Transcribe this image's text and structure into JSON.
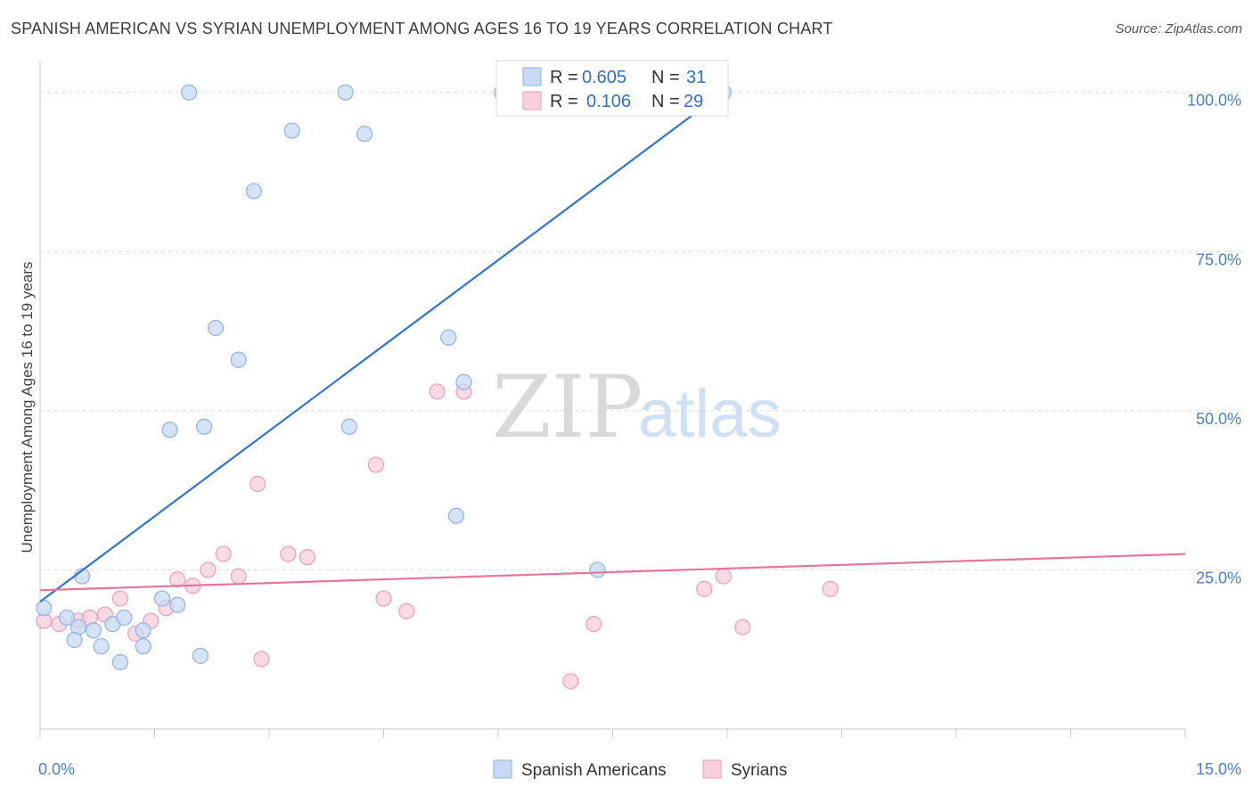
{
  "title": "SPANISH AMERICAN VS SYRIAN UNEMPLOYMENT AMONG AGES 16 TO 19 YEARS CORRELATION CHART",
  "source": "Source: ZipAtlas.com",
  "watermark": {
    "zip": "ZIP",
    "atlas": "atlas"
  },
  "colors": {
    "blue_fill": "#c7d9f3",
    "blue_stroke": "#8fb2e3",
    "blue_line": "#2f74d0",
    "pink_fill": "#f8cfdc",
    "pink_stroke": "#ee9db7",
    "pink_line": "#e8749b",
    "grid": "#d9d9d9",
    "axis_text": "#4a7fc9"
  },
  "legend": {
    "rows": [
      {
        "r_label": "R =",
        "r_value": "0.605",
        "n_label": "N =",
        "n_value": "31"
      },
      {
        "r_label": "R =",
        "r_value": "0.106",
        "n_label": "N =",
        "n_value": "29"
      }
    ]
  },
  "bottom_legend": [
    "Spanish Americans",
    "Syrians"
  ],
  "chart_data": {
    "type": "scatter",
    "title": "SPANISH AMERICAN VS SYRIAN UNEMPLOYMENT AMONG AGES 16 TO 19 YEARS CORRELATION CHART",
    "xlabel": "",
    "ylabel": "Unemployment Among Ages 16 to 19 years",
    "xlim": [
      0,
      15
    ],
    "ylim": [
      0,
      105
    ],
    "x_tick_labels": [
      "0.0%",
      "15.0%"
    ],
    "y_ticks": [
      25,
      50,
      75,
      100
    ],
    "y_tick_labels": [
      "25.0%",
      "50.0%",
      "75.0%",
      "100.0%"
    ],
    "grid": true,
    "legend_position": "top-center",
    "series": [
      {
        "name": "Spanish Americans",
        "points": [
          [
            0.05,
            19
          ],
          [
            0.55,
            24
          ],
          [
            0.5,
            16
          ],
          [
            0.35,
            17.5
          ],
          [
            0.45,
            14
          ],
          [
            0.7,
            15.5
          ],
          [
            0.8,
            13
          ],
          [
            0.95,
            16.5
          ],
          [
            1.1,
            17.5
          ],
          [
            1.05,
            10.5
          ],
          [
            1.35,
            13
          ],
          [
            1.35,
            15.5
          ],
          [
            1.6,
            20.5
          ],
          [
            1.8,
            19.5
          ],
          [
            2.1,
            11.5
          ],
          [
            1.7,
            47
          ],
          [
            2.15,
            47.5
          ],
          [
            2.3,
            63
          ],
          [
            2.6,
            58
          ],
          [
            2.8,
            84.5
          ],
          [
            3.3,
            94
          ],
          [
            1.95,
            100
          ],
          [
            4.0,
            100
          ],
          [
            4.25,
            93.5
          ],
          [
            4.05,
            47.5
          ],
          [
            5.35,
            61.5
          ],
          [
            5.55,
            54.5
          ],
          [
            5.45,
            33.5
          ],
          [
            6.05,
            100
          ],
          [
            7.3,
            25
          ],
          [
            8.95,
            100
          ]
        ],
        "trend": {
          "x": [
            0.0,
            9.0
          ],
          "y": [
            20.0,
            100.5
          ]
        }
      },
      {
        "name": "Syrians",
        "points": [
          [
            0.05,
            17
          ],
          [
            0.25,
            16.5
          ],
          [
            0.5,
            17
          ],
          [
            0.65,
            17.5
          ],
          [
            0.85,
            18
          ],
          [
            1.05,
            20.5
          ],
          [
            1.25,
            15
          ],
          [
            1.45,
            17
          ],
          [
            1.65,
            19
          ],
          [
            1.8,
            23.5
          ],
          [
            2.0,
            22.5
          ],
          [
            2.2,
            25
          ],
          [
            2.4,
            27.5
          ],
          [
            2.6,
            24
          ],
          [
            2.85,
            38.5
          ],
          [
            2.9,
            11
          ],
          [
            3.25,
            27.5
          ],
          [
            3.5,
            27
          ],
          [
            4.4,
            41.5
          ],
          [
            4.5,
            20.5
          ],
          [
            4.8,
            18.5
          ],
          [
            5.2,
            53
          ],
          [
            5.55,
            53
          ],
          [
            6.95,
            7.5
          ],
          [
            7.25,
            16.5
          ],
          [
            8.7,
            22
          ],
          [
            8.95,
            24
          ],
          [
            9.2,
            16
          ],
          [
            10.35,
            22
          ]
        ],
        "trend": {
          "x": [
            0.0,
            15.0
          ],
          "y": [
            21.8,
            27.5
          ]
        }
      }
    ]
  }
}
